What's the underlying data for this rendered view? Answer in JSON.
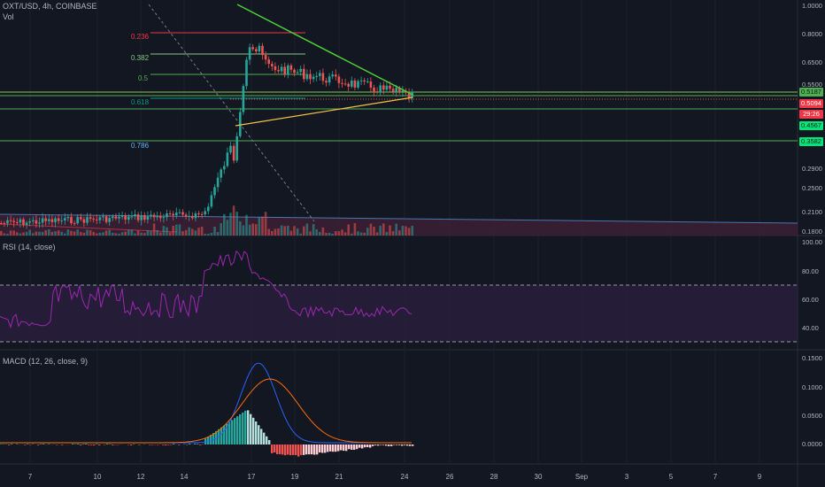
{
  "header": {
    "symbol": "OXT/USD, 4h, COINBASE",
    "volume": "Vol",
    "rsi": "RSI (14, close)",
    "macd": "MACD (12, 26, close, 9)"
  },
  "fib_levels": [
    {
      "label": "0.236",
      "color": "#f23645"
    },
    {
      "label": "0.382",
      "color": "#81c784"
    },
    {
      "label": "0.5",
      "color": "#4caf50"
    },
    {
      "label": "0.618",
      "color": "#089981"
    },
    {
      "label": "0.786",
      "color": "#64b5f6"
    }
  ],
  "price_axis": [
    "1.0000",
    "0.8000",
    "0.6500",
    "0.5500",
    "0.2900",
    "0.2500",
    "0.2100",
    "0.1800"
  ],
  "badges": [
    {
      "text": "0.5187",
      "bg": "#4caf50",
      "fg": "#131722"
    },
    {
      "text": "0.5094",
      "bg": "#f23645",
      "fg": "#ffffff"
    },
    {
      "text": "29:26",
      "bg": "#f23645",
      "fg": "#ffffff"
    },
    {
      "text": "0.4567",
      "bg": "#00e676",
      "fg": "#131722"
    },
    {
      "text": "0.3582",
      "bg": "#00e676",
      "fg": "#131722"
    }
  ],
  "rsi_axis": [
    "100.00",
    "80.00",
    "60.00",
    "40.00"
  ],
  "macd_axis": [
    "0.1500",
    "0.1000",
    "0.0500",
    "0.0000"
  ],
  "time_axis": [
    "7",
    "10",
    "12",
    "14",
    "17",
    "19",
    "21",
    "24",
    "26",
    "28",
    "30",
    "Sep",
    "3",
    "5",
    "7",
    "9"
  ],
  "colors": {
    "up": "#26a69a",
    "down": "#ef5350",
    "triangle_top": "#4cd137",
    "triangle_bottom": "#f5c242",
    "rsi": "#9c27b0",
    "macd": "#2962ff",
    "signal": "#ff6d00"
  },
  "chart_data": {
    "type": "candlestick",
    "symbol": "OXT/USD",
    "interval": "4h",
    "current_price": 0.5094,
    "price_range": [
      0.18,
      1.0
    ],
    "horizontal_levels": [
      0.5187,
      0.4567,
      0.3582
    ],
    "rsi_range": [
      30,
      100
    ],
    "macd": {
      "line_peak": 0.135,
      "signal_peak": 0.11,
      "range": [
        -0.02,
        0.15
      ]
    }
  }
}
